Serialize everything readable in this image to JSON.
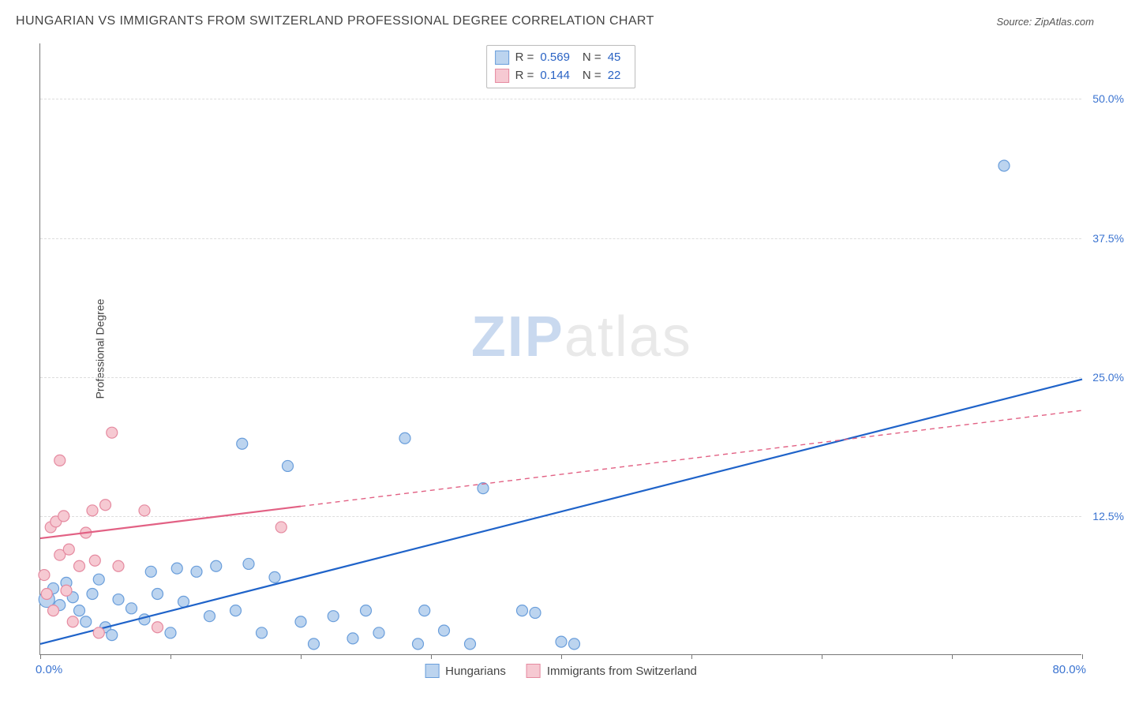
{
  "header": {
    "title": "HUNGARIAN VS IMMIGRANTS FROM SWITZERLAND PROFESSIONAL DEGREE CORRELATION CHART",
    "source_prefix": "Source: ",
    "source_name": "ZipAtlas.com"
  },
  "watermark": {
    "part1": "ZIP",
    "part2": "atlas"
  },
  "chart": {
    "type": "scatter",
    "y_axis": {
      "label": "Professional Degree",
      "min": 0,
      "max": 55,
      "ticks": [
        {
          "value": 12.5,
          "label": "12.5%"
        },
        {
          "value": 25.0,
          "label": "25.0%"
        },
        {
          "value": 37.5,
          "label": "37.5%"
        },
        {
          "value": 50.0,
          "label": "50.0%"
        }
      ],
      "label_color": "#3b74d1",
      "label_fontsize": 14
    },
    "x_axis": {
      "min": 0,
      "max": 80,
      "tick_positions": [
        0,
        10,
        20,
        30,
        40,
        50,
        60,
        70,
        80
      ],
      "start_label": "0.0%",
      "end_label": "80.0%",
      "label_color": "#3b74d1"
    },
    "grid_color": "#dddddd",
    "background_color": "#ffffff",
    "marker_radius": 7,
    "marker_radius_big": 10,
    "series": {
      "hungarians": {
        "label": "Hungarians",
        "fill": "#bcd4ef",
        "stroke": "#6a9edb",
        "line_color": "#1f63c9",
        "r_value": "0.569",
        "n_value": "45",
        "trend": {
          "x1": 0,
          "y1": 1.0,
          "x2": 80,
          "y2": 24.8,
          "solid_until_x": 80
        },
        "points": [
          {
            "x": 0.5,
            "y": 5.0,
            "big": true
          },
          {
            "x": 1.0,
            "y": 6.0
          },
          {
            "x": 1.5,
            "y": 4.5
          },
          {
            "x": 2.0,
            "y": 6.5
          },
          {
            "x": 2.5,
            "y": 5.2
          },
          {
            "x": 3.0,
            "y": 4.0
          },
          {
            "x": 3.5,
            "y": 3.0
          },
          {
            "x": 4.0,
            "y": 5.5
          },
          {
            "x": 4.5,
            "y": 6.8
          },
          {
            "x": 5.0,
            "y": 2.5
          },
          {
            "x": 5.5,
            "y": 1.8
          },
          {
            "x": 6.0,
            "y": 5.0
          },
          {
            "x": 7.0,
            "y": 4.2
          },
          {
            "x": 8.0,
            "y": 3.2
          },
          {
            "x": 8.5,
            "y": 7.5
          },
          {
            "x": 9.0,
            "y": 5.5
          },
          {
            "x": 10.0,
            "y": 2.0
          },
          {
            "x": 10.5,
            "y": 7.8
          },
          {
            "x": 11.0,
            "y": 4.8
          },
          {
            "x": 12.0,
            "y": 7.5
          },
          {
            "x": 13.0,
            "y": 3.5
          },
          {
            "x": 13.5,
            "y": 8.0
          },
          {
            "x": 15.0,
            "y": 4.0
          },
          {
            "x": 15.5,
            "y": 19.0
          },
          {
            "x": 16.0,
            "y": 8.2
          },
          {
            "x": 17.0,
            "y": 2.0
          },
          {
            "x": 18.0,
            "y": 7.0
          },
          {
            "x": 19.0,
            "y": 17.0
          },
          {
            "x": 20.0,
            "y": 3.0
          },
          {
            "x": 21.0,
            "y": 1.0
          },
          {
            "x": 22.5,
            "y": 3.5
          },
          {
            "x": 24.0,
            "y": 1.5
          },
          {
            "x": 25.0,
            "y": 4.0
          },
          {
            "x": 26.0,
            "y": 2.0
          },
          {
            "x": 28.0,
            "y": 19.5
          },
          {
            "x": 29.0,
            "y": 1.0
          },
          {
            "x": 29.5,
            "y": 4.0
          },
          {
            "x": 31.0,
            "y": 2.2
          },
          {
            "x": 33.0,
            "y": 1.0
          },
          {
            "x": 34.0,
            "y": 15.0
          },
          {
            "x": 37.0,
            "y": 4.0
          },
          {
            "x": 38.0,
            "y": 3.8
          },
          {
            "x": 40.0,
            "y": 1.2
          },
          {
            "x": 41.0,
            "y": 1.0
          },
          {
            "x": 74.0,
            "y": 44.0
          }
        ]
      },
      "swiss": {
        "label": "Immigrants from Switzerland",
        "fill": "#f6c9d2",
        "stroke": "#e58aa0",
        "line_color": "#e26184",
        "r_value": "0.144",
        "n_value": "22",
        "trend": {
          "x1": 0,
          "y1": 10.5,
          "x2": 80,
          "y2": 22.0,
          "solid_until_x": 20
        },
        "points": [
          {
            "x": 0.3,
            "y": 7.2
          },
          {
            "x": 0.5,
            "y": 5.5
          },
          {
            "x": 0.8,
            "y": 11.5
          },
          {
            "x": 1.0,
            "y": 4.0
          },
          {
            "x": 1.2,
            "y": 12.0
          },
          {
            "x": 1.5,
            "y": 9.0
          },
          {
            "x": 1.5,
            "y": 17.5
          },
          {
            "x": 1.8,
            "y": 12.5
          },
          {
            "x": 2.0,
            "y": 5.8
          },
          {
            "x": 2.2,
            "y": 9.5
          },
          {
            "x": 2.5,
            "y": 3.0
          },
          {
            "x": 3.0,
            "y": 8.0
          },
          {
            "x": 3.5,
            "y": 11.0
          },
          {
            "x": 4.0,
            "y": 13.0
          },
          {
            "x": 4.2,
            "y": 8.5
          },
          {
            "x": 4.5,
            "y": 2.0
          },
          {
            "x": 5.0,
            "y": 13.5
          },
          {
            "x": 5.5,
            "y": 20.0
          },
          {
            "x": 6.0,
            "y": 8.0
          },
          {
            "x": 8.0,
            "y": 13.0
          },
          {
            "x": 9.0,
            "y": 2.5
          },
          {
            "x": 18.5,
            "y": 11.5
          }
        ]
      }
    },
    "legend_top": {
      "r_label": "R =",
      "n_label": "N ="
    }
  }
}
